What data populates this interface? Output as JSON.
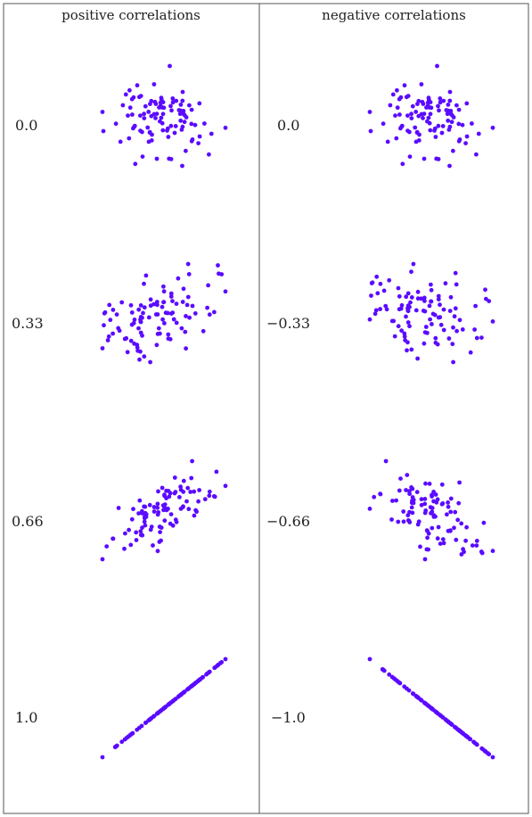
{
  "colors": {
    "dot": "#5b0bff",
    "frame": "#555555",
    "text": "#222222"
  },
  "chart_data": {
    "type": "scatter",
    "columns": [
      {
        "title": "positive correlations",
        "panels": [
          {
            "label": "0.0",
            "correlation": 0.0
          },
          {
            "label": "0.33",
            "correlation": 0.33
          },
          {
            "label": "0.66",
            "correlation": 0.66
          },
          {
            "label": "1.0",
            "correlation": 1.0
          }
        ]
      },
      {
        "title": "negative correlations",
        "panels": [
          {
            "label": "0.0",
            "correlation": 0.0
          },
          {
            "label": "−0.33",
            "correlation": -0.33
          },
          {
            "label": "−0.66",
            "correlation": -0.66
          },
          {
            "label": "−1.0",
            "correlation": -1.0
          }
        ]
      }
    ],
    "points_per_panel": 100,
    "axes_visible": false,
    "grid": false,
    "legend": "none"
  }
}
